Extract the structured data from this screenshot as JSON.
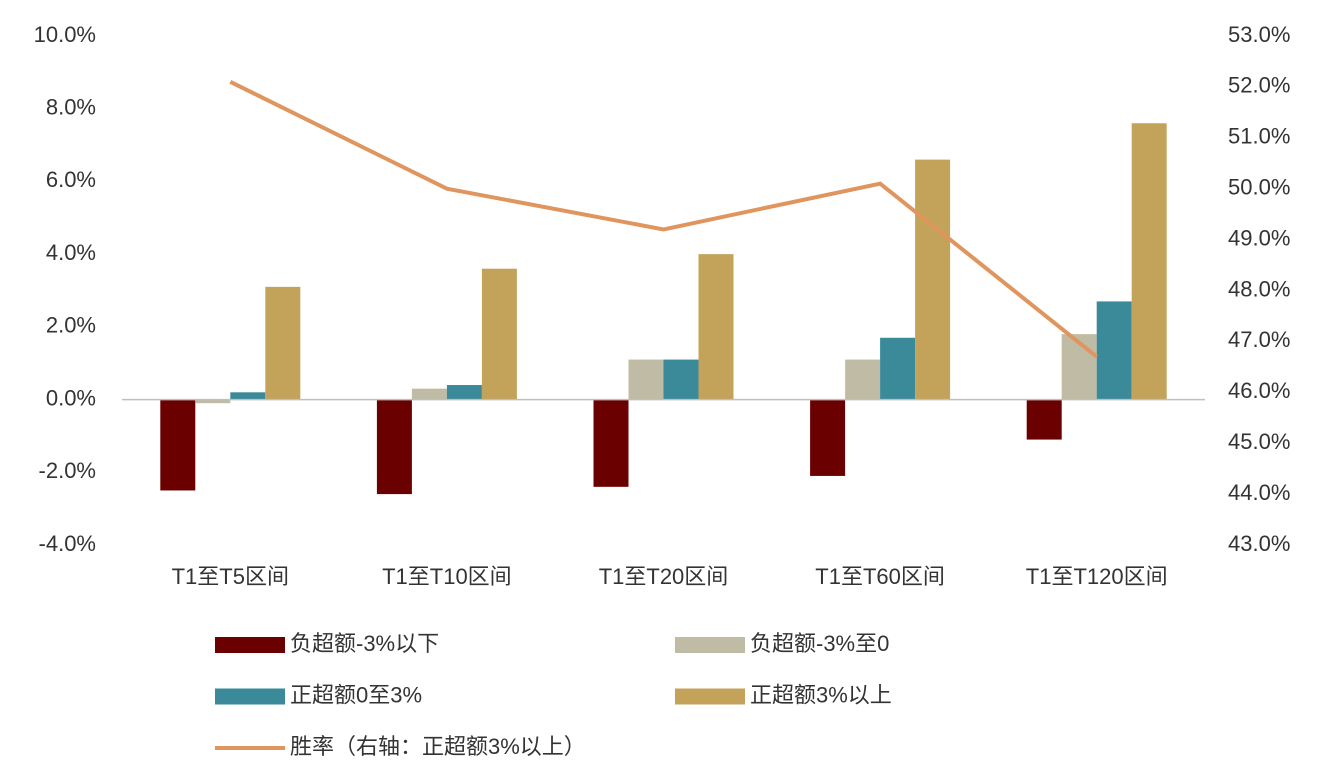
{
  "chart_data": {
    "type": "bar",
    "categories": [
      "T1至T5区间",
      "T1至T10区间",
      "T1至T20区间",
      "T1至T60区间",
      "T1至T120区间"
    ],
    "series": [
      {
        "name": "负超额-3%以下",
        "color": "#6b0000",
        "values": [
          -2.5,
          -2.6,
          -2.4,
          -2.1,
          -1.1
        ]
      },
      {
        "name": "负超额-3%至0",
        "color": "#bfbba5",
        "values": [
          -0.1,
          0.3,
          1.1,
          1.1,
          1.8
        ]
      },
      {
        "name": "正超额0至3%",
        "color": "#3a8a99",
        "values": [
          0.2,
          0.4,
          1.1,
          1.7,
          2.7
        ]
      },
      {
        "name": "正超额3%以上",
        "color": "#c3a35a",
        "values": [
          3.1,
          3.6,
          4.0,
          6.6,
          7.6
        ]
      },
      {
        "name": "胜率（右轴：正超额3%以上）",
        "color": "#e0955e",
        "type": "line",
        "axis": "y2",
        "values": [
          52.1,
          50.0,
          49.2,
          50.1,
          46.7
        ]
      }
    ],
    "ylim": [
      -4,
      10
    ],
    "yticks": [
      {
        "value": -4,
        "label": "-4.0%"
      },
      {
        "value": -2,
        "label": "-2.0%"
      },
      {
        "value": 0,
        "label": "0.0%"
      },
      {
        "value": 2,
        "label": "2.0%"
      },
      {
        "value": 4,
        "label": "4.0%"
      },
      {
        "value": 6,
        "label": "6.0%"
      },
      {
        "value": 8,
        "label": "8.0%"
      },
      {
        "value": 10,
        "label": "10.0%"
      }
    ],
    "y2lim": [
      43,
      53
    ],
    "y2ticks": [
      {
        "value": 43,
        "label": "43.0%"
      },
      {
        "value": 44,
        "label": "44.0%"
      },
      {
        "value": 45,
        "label": "45.0%"
      },
      {
        "value": 46,
        "label": "46.0%"
      },
      {
        "value": 47,
        "label": "47.0%"
      },
      {
        "value": 48,
        "label": "48.0%"
      },
      {
        "value": 49,
        "label": "49.0%"
      },
      {
        "value": 50,
        "label": "50.0%"
      },
      {
        "value": 51,
        "label": "51.0%"
      },
      {
        "value": 52,
        "label": "52.0%"
      },
      {
        "value": 53,
        "label": "53.0%"
      }
    ],
    "grid": false,
    "legend": "bottom"
  }
}
